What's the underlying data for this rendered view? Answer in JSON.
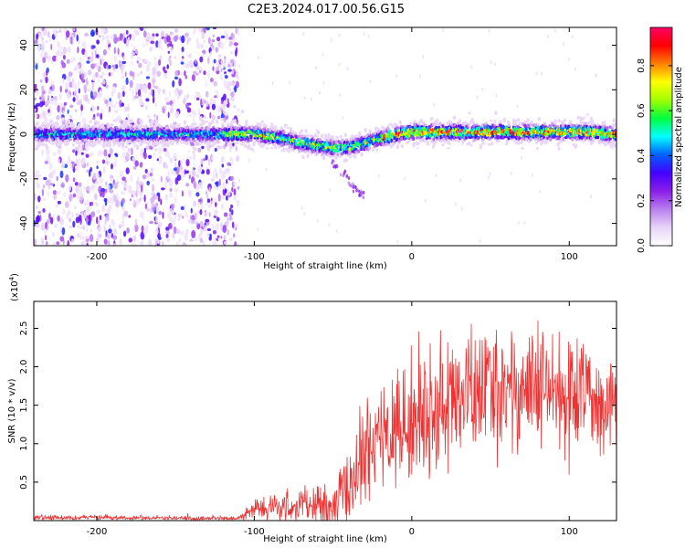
{
  "figure": {
    "title": "C2E3.2024.017.00.56.G15"
  },
  "chart_data": [
    {
      "type": "heatmap",
      "xlabel": "Height of straight line (km)",
      "ylabel": "Frequency (Hz)",
      "xlim": [
        -240,
        130
      ],
      "ylim": [
        -50,
        48
      ],
      "xticks": [
        -200,
        -100,
        0,
        100
      ],
      "yticks": [
        -40,
        -20,
        0,
        20,
        40
      ],
      "colorbar": {
        "label": "Normalized spectral amplitude",
        "range": [
          0,
          0.97
        ],
        "ticks": [
          0.0,
          0.2,
          0.4,
          0.6,
          0.8
        ],
        "colormap": [
          "#ffffff",
          "#e8d4f8",
          "#b980ef",
          "#8a1ee8",
          "#4400ff",
          "#0060ff",
          "#00ffff",
          "#00ff40",
          "#a0ff00",
          "#ffff00",
          "#ff8000",
          "#ff0000",
          "#ff0066"
        ]
      },
      "ridge": {
        "x": [
          -240,
          -200,
          -150,
          -120,
          -100,
          -80,
          -70,
          -60,
          -50,
          -40,
          -30,
          -20,
          -10,
          0,
          20,
          50,
          80,
          110,
          130
        ],
        "y": [
          0,
          0,
          0,
          0,
          0,
          -2,
          -4,
          -5,
          -6,
          -6,
          -4,
          -2,
          0,
          1,
          1,
          1,
          1,
          1,
          0
        ]
      },
      "noise_region_x": [
        -240,
        -110
      ],
      "secondary_streak": {
        "x": [
          -55,
          -30
        ],
        "y": [
          -10,
          -28
        ]
      }
    },
    {
      "type": "line",
      "xlabel": "Height of straight line (km)",
      "ylabel": "SNR (10 * v/v)",
      "yscale_label": "(x10",
      "yscale_exp": "4",
      "xlim": [
        -240,
        130
      ],
      "ylim": [
        0,
        2.85
      ],
      "xticks": [
        -200,
        -100,
        0,
        100
      ],
      "yticks": [
        0.5,
        1.0,
        1.5,
        2.0,
        2.5
      ],
      "series": [
        {
          "color": "#ee3333",
          "envelope": {
            "x": [
              -240,
              -200,
              -150,
              -110,
              -100,
              -80,
              -60,
              -50,
              -40,
              -30,
              -20,
              -10,
              0,
              10,
              20,
              30,
              40,
              50,
              60,
              70,
              80,
              90,
              100,
              110,
              120,
              130
            ],
            "y": [
              0.04,
              0.04,
              0.03,
              0.03,
              0.15,
              0.17,
              0.2,
              0.12,
              0.45,
              0.85,
              1.05,
              1.2,
              1.3,
              1.35,
              1.5,
              1.6,
              1.65,
              1.7,
              1.75,
              1.7,
              1.68,
              1.65,
              1.6,
              1.62,
              1.6,
              1.62
            ]
          },
          "spread": {
            "x": [
              -240,
              -110,
              -100,
              -60,
              -40,
              -20,
              0,
              20,
              60,
              100,
              130
            ],
            "y": [
              0.015,
              0.015,
              0.07,
              0.13,
              0.25,
              0.38,
              0.4,
              0.42,
              0.4,
              0.38,
              0.3
            ]
          }
        }
      ]
    }
  ]
}
